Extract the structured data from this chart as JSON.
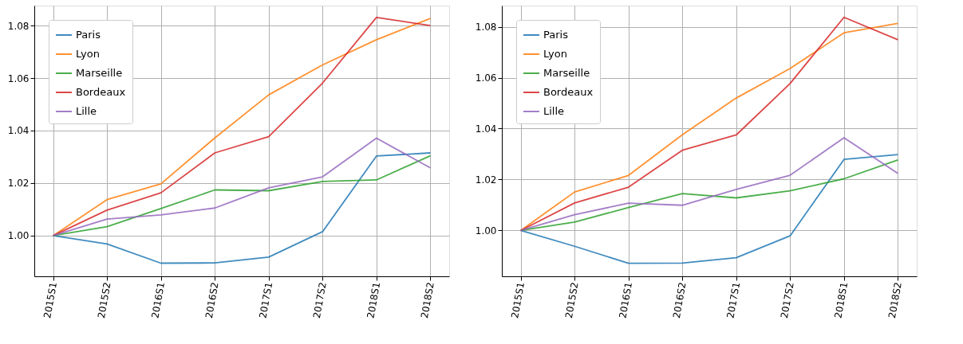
{
  "chart_data": [
    {
      "type": "line",
      "categories": [
        "2015S1",
        "2015S2",
        "2016S1",
        "2016S2",
        "2017S1",
        "2017S2",
        "2018S1",
        "2018S2"
      ],
      "ylim": [
        0.9845,
        1.0876
      ],
      "yticks": [
        {
          "value": 1.0,
          "label": "1.00"
        },
        {
          "value": 1.02,
          "label": "1.02"
        },
        {
          "value": 1.04,
          "label": "1.04"
        },
        {
          "value": 1.06,
          "label": "1.06"
        },
        {
          "value": 1.08,
          "label": "1.08"
        }
      ],
      "grid": true,
      "legend": "top left",
      "line_style": "solid",
      "series": [
        {
          "name": "Paris",
          "color": "#1f77b4",
          "values": [
            1.0,
            0.9968,
            0.9895,
            0.9896,
            0.9918,
            1.0015,
            1.0303,
            1.0315
          ]
        },
        {
          "name": "Lyon",
          "color": "#ff7f0e",
          "values": [
            1.0,
            1.0137,
            1.0197,
            1.0372,
            1.0536,
            1.065,
            1.0746,
            1.0827
          ]
        },
        {
          "name": "Marseille",
          "color": "#2ca02c",
          "values": [
            1.0,
            1.0034,
            1.0103,
            1.0174,
            1.0171,
            1.0206,
            1.0212,
            1.0304
          ]
        },
        {
          "name": "Bordeaux",
          "color": "#d62728",
          "values": [
            1.0,
            1.0097,
            1.0163,
            1.0315,
            1.0377,
            1.0581,
            1.0831,
            1.08
          ]
        },
        {
          "name": "Lille",
          "color": "#9467bd",
          "values": [
            1.0,
            1.0063,
            1.0079,
            1.0105,
            1.0182,
            1.0224,
            1.0371,
            1.0258
          ]
        }
      ]
    },
    {
      "type": "line",
      "categories": [
        "2015S1",
        "2015S2",
        "2016S1",
        "2016S2",
        "2017S1",
        "2017S2",
        "2018S1",
        "2018S2"
      ],
      "ylim": [
        0.982,
        1.0883
      ],
      "yticks": [
        {
          "value": 1.0,
          "label": "1.00"
        },
        {
          "value": 1.02,
          "label": "1.02"
        },
        {
          "value": 1.04,
          "label": "1.04"
        },
        {
          "value": 1.06,
          "label": "1.06"
        },
        {
          "value": 1.08,
          "label": "1.08"
        }
      ],
      "grid": true,
      "legend": "top left",
      "line_style": "solid",
      "series": [
        {
          "name": "Paris",
          "color": "#1f77b4",
          "values": [
            1.0,
            0.9938,
            0.9871,
            0.9872,
            0.9893,
            0.9979,
            1.0279,
            1.0298
          ]
        },
        {
          "name": "Lyon",
          "color": "#ff7f0e",
          "values": [
            1.0,
            1.0151,
            1.0216,
            1.0376,
            1.052,
            1.0636,
            1.0776,
            1.0813
          ]
        },
        {
          "name": "Marseille",
          "color": "#2ca02c",
          "values": [
            1.0,
            1.0033,
            1.009,
            1.0145,
            1.0128,
            1.0156,
            1.0203,
            1.0277
          ]
        },
        {
          "name": "Bordeaux",
          "color": "#d62728",
          "values": [
            1.0,
            1.0108,
            1.017,
            1.0315,
            1.0375,
            1.0577,
            1.0837,
            1.0749
          ]
        },
        {
          "name": "Lille",
          "color": "#9467bd",
          "values": [
            1.0,
            1.0062,
            1.0107,
            1.0099,
            1.0161,
            1.0217,
            1.0364,
            1.0224
          ]
        }
      ]
    }
  ]
}
